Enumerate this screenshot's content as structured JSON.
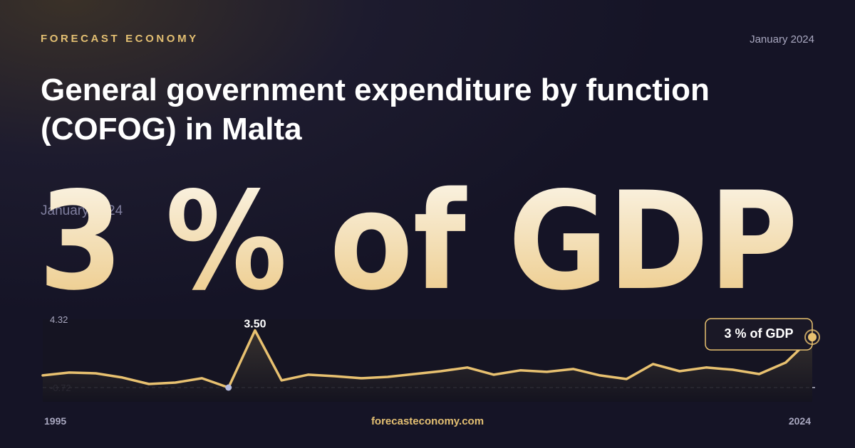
{
  "header": {
    "brand": "FORECAST ECONOMY",
    "date": "January 2024",
    "title": [
      "General government expenditure by function",
      "(COFOG) in Malta"
    ],
    "headline": "3 % of GDP",
    "footer": "forecasteconomy.com"
  },
  "chart_data": {
    "type": "line",
    "x": [
      1995,
      1996,
      1997,
      1998,
      1999,
      2000,
      2001,
      2002,
      2003,
      2004,
      2005,
      2006,
      2007,
      2008,
      2009,
      2010,
      2011,
      2012,
      2013,
      2014,
      2015,
      2016,
      2017,
      2018,
      2019,
      2020,
      2021,
      2022,
      2023,
      2024
    ],
    "xlim": [
      1995,
      2024
    ],
    "xticks": [
      1995,
      2024
    ],
    "ylim": [
      -0.72,
      4.32
    ],
    "yticks": [
      4.32,
      -0.72
    ],
    "series": [
      {
        "color": "#e8c170",
        "values": [
          0.18,
          0.39,
          0.33,
          0.02,
          -0.46,
          -0.35,
          -0.03,
          -0.72,
          3.5,
          -0.19,
          0.23,
          0.12,
          -0.03,
          0.07,
          0.28,
          0.49,
          0.76,
          0.23,
          0.55,
          0.44,
          0.65,
          0.18,
          -0.09,
          1.02,
          0.49,
          0.76,
          0.6,
          0.28,
          1.13,
          3
        ],
        "value_labels": [
          null,
          null,
          null,
          null,
          null,
          null,
          null,
          null,
          "3.50",
          null,
          null,
          null,
          null,
          null,
          null,
          null,
          null,
          null,
          null,
          null,
          null,
          null,
          null,
          null,
          null,
          null,
          null,
          null,
          null,
          null
        ]
      }
    ]
  }
}
